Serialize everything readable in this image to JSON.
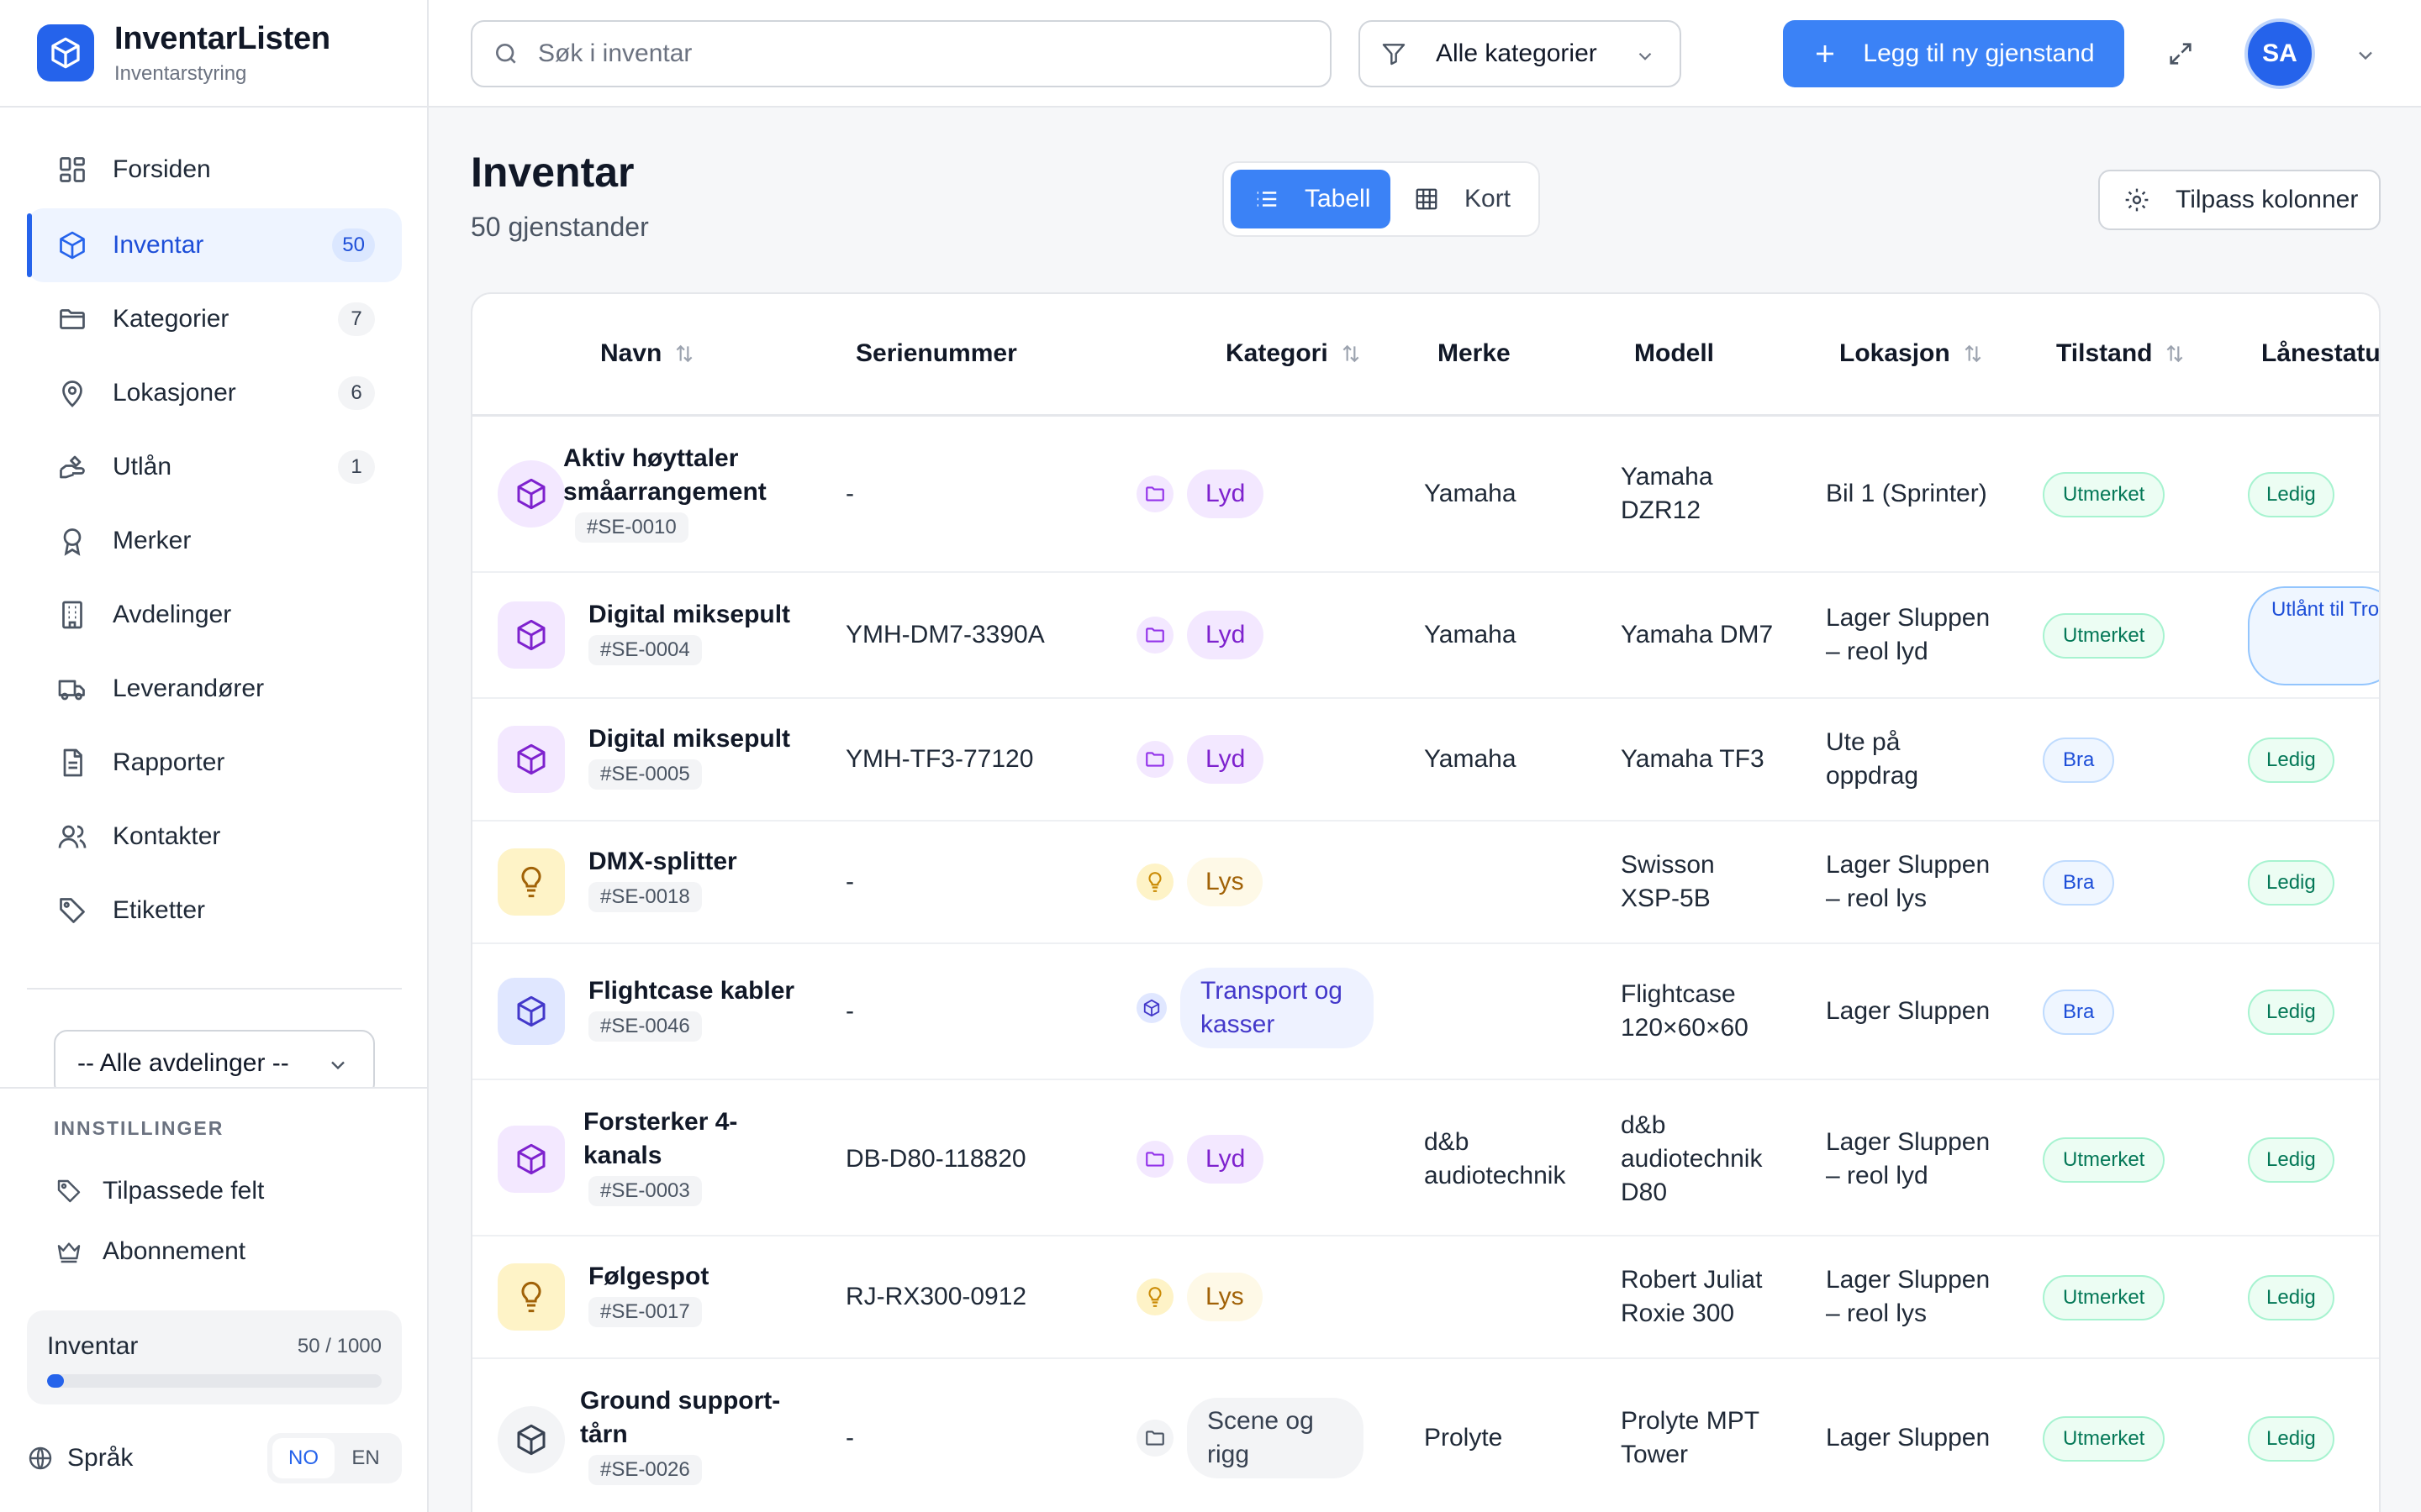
{
  "brand": {
    "name": "InventarListen",
    "subtitle": "Inventarstyring"
  },
  "nav": [
    {
      "label": "Forsiden",
      "icon": "dashboard-icon",
      "badge": ""
    },
    {
      "label": "Inventar",
      "icon": "box-icon",
      "badge": "50",
      "active": true
    },
    {
      "label": "Kategorier",
      "icon": "folder-icon",
      "badge": "7"
    },
    {
      "label": "Lokasjoner",
      "icon": "map-pin-icon",
      "badge": "6"
    },
    {
      "label": "Utlån",
      "icon": "hand-icon",
      "badge": "1"
    },
    {
      "label": "Merker",
      "icon": "award-icon",
      "badge": ""
    },
    {
      "label": "Avdelinger",
      "icon": "building-icon",
      "badge": ""
    },
    {
      "label": "Leverandører",
      "icon": "truck-icon",
      "badge": ""
    },
    {
      "label": "Rapporter",
      "icon": "report-icon",
      "badge": ""
    },
    {
      "label": "Kontakter",
      "icon": "users-icon",
      "badge": ""
    },
    {
      "label": "Etiketter",
      "icon": "tag-icon",
      "badge": ""
    }
  ],
  "department_select": {
    "value": "-- Alle avdelinger --"
  },
  "settings": {
    "title": "INNSTILLINGER",
    "items": [
      {
        "label": "Tilpassede felt",
        "icon": "tag-settings-icon"
      },
      {
        "label": "Abonnement",
        "icon": "crown-icon"
      }
    ]
  },
  "usage": {
    "label": "Inventar",
    "count": "50 / 1000",
    "fraction": 0.05
  },
  "language": {
    "label": "Språk",
    "options": [
      "NO",
      "EN"
    ],
    "selected": "NO"
  },
  "topbar": {
    "search_placeholder": "Søk i inventar",
    "filter_label": "Alle kategorier",
    "add_label": "Legg til ny gjenstand",
    "avatar_initials": "SA"
  },
  "page": {
    "title": "Inventar",
    "subtitle": "50 gjenstander",
    "view_table": "Tabell",
    "view_cards": "Kort",
    "customize_columns": "Tilpass kolonner"
  },
  "columns": {
    "name": "Navn",
    "serial": "Serienummer",
    "category": "Kategori",
    "brand": "Merke",
    "model": "Modell",
    "location": "Lokasjon",
    "condition": "Tilstand",
    "loan_status": "Lånestatus"
  },
  "colors": {
    "primary": "#3b82f6",
    "sound": "#7e22ce",
    "light": "#a16207",
    "transport": "#4338ca",
    "stage": "#374151"
  },
  "rows": [
    {
      "name": "Aktiv høyttaler småarrangement",
      "sku": "#SE-0010",
      "serial": "-",
      "category": "Lyd",
      "brand": "Yamaha",
      "model": "Yamaha DZR12",
      "location": "Bil 1 (Sprinter)",
      "condition": "Utmerket",
      "loan": "Ledig"
    },
    {
      "name": "Digital miksepult",
      "sku": "#SE-0004",
      "serial": "YMH-DM7-3390A",
      "category": "Lyd",
      "brand": "Yamaha",
      "model": "Yamaha DM7",
      "location": "Lager Sluppen – reol lyd",
      "condition": "Utmerket",
      "loan": "Utlånt til Trondheim Kulturhus"
    },
    {
      "name": "Digital miksepult",
      "sku": "#SE-0005",
      "serial": "YMH-TF3-77120",
      "category": "Lyd",
      "brand": "Yamaha",
      "model": "Yamaha TF3",
      "location": "Ute på oppdrag",
      "condition": "Bra",
      "loan": "Ledig"
    },
    {
      "name": "DMX-splitter",
      "sku": "#SE-0018",
      "serial": "-",
      "category": "Lys",
      "brand": "",
      "model": "Swisson XSP-5B",
      "location": "Lager Sluppen – reol lys",
      "condition": "Bra",
      "loan": "Ledig"
    },
    {
      "name": "Flightcase kabler",
      "sku": "#SE-0046",
      "serial": "-",
      "category": "Transport og kasser",
      "brand": "",
      "model": "Flightcase 120×60×60",
      "location": "Lager Sluppen",
      "condition": "Bra",
      "loan": "Ledig"
    },
    {
      "name": "Forsterker 4-kanals",
      "sku": "#SE-0003",
      "serial": "DB-D80-118820",
      "category": "Lyd",
      "brand": "d&b audiotechnik",
      "model": "d&b audiotechnik D80",
      "location": "Lager Sluppen – reol lyd",
      "condition": "Utmerket",
      "loan": "Ledig"
    },
    {
      "name": "Følgespot",
      "sku": "#SE-0017",
      "serial": "RJ-RX300-0912",
      "category": "Lys",
      "brand": "",
      "model": "Robert Juliat Roxie 300",
      "location": "Lager Sluppen – reol lys",
      "condition": "Utmerket",
      "loan": "Ledig"
    },
    {
      "name": "Ground support-tårn",
      "sku": "#SE-0026",
      "serial": "-",
      "category": "Scene og rigg",
      "brand": "Prolyte",
      "model": "Prolyte MPT Tower",
      "location": "Lager Sluppen",
      "condition": "Utmerket",
      "loan": "Ledig"
    }
  ]
}
